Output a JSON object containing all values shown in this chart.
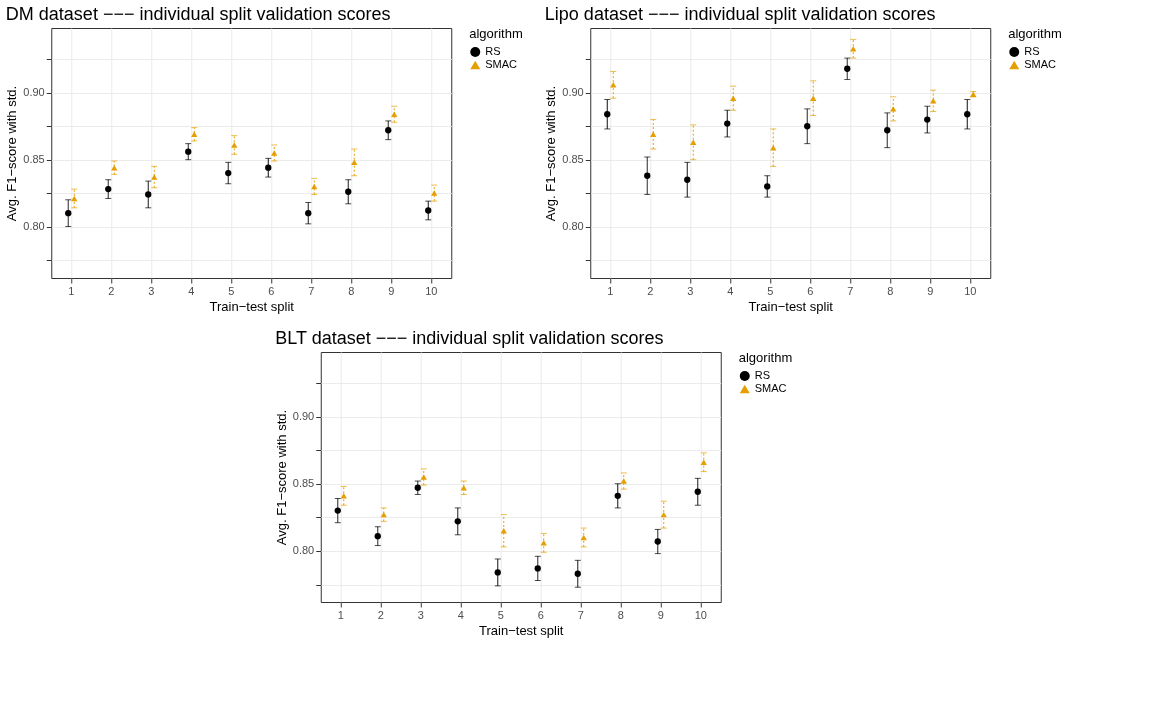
{
  "chart_data": [
    {
      "type": "scatter",
      "title": "DM dataset −−− individual split validation scores",
      "xlabel": "Train−test split",
      "ylabel": "Avg. F1−score with std.",
      "legend_title": "algorithm",
      "categories": [
        "1",
        "2",
        "3",
        "4",
        "5",
        "6",
        "7",
        "8",
        "9",
        "10"
      ],
      "series": [
        {
          "name": "RS",
          "color": "#000000",
          "marker": "circle",
          "line_style": "solid",
          "values": [
            0.81,
            0.828,
            0.824,
            0.856,
            0.84,
            0.844,
            0.81,
            0.826,
            0.872,
            0.812
          ],
          "errors": [
            0.01,
            0.007,
            0.01,
            0.006,
            0.008,
            0.007,
            0.008,
            0.009,
            0.007,
            0.007
          ]
        },
        {
          "name": "SMAC",
          "color": "#e69f00",
          "marker": "triangle",
          "line_style": "dotted",
          "values": [
            0.821,
            0.844,
            0.837,
            0.869,
            0.861,
            0.855,
            0.83,
            0.848,
            0.884,
            0.825
          ],
          "errors": [
            0.007,
            0.005,
            0.008,
            0.005,
            0.007,
            0.006,
            0.006,
            0.01,
            0.006,
            0.006
          ]
        }
      ],
      "ylim": [
        0.7615,
        0.9485
      ],
      "yticks": [
        {
          "value": 0.775,
          "label": null
        },
        {
          "value": 0.8,
          "label": "0.80"
        },
        {
          "value": 0.825,
          "label": null
        },
        {
          "value": 0.85,
          "label": "0.85"
        },
        {
          "value": 0.875,
          "label": null
        },
        {
          "value": 0.9,
          "label": "0.90"
        },
        {
          "value": 0.925,
          "label": null
        }
      ],
      "grid": true,
      "legend": "right"
    },
    {
      "type": "scatter",
      "title": "Lipo dataset −−− individual split validation scores",
      "xlabel": "Train−test split",
      "ylabel": "Avg. F1−score with std.",
      "legend_title": "algorithm",
      "categories": [
        "1",
        "2",
        "3",
        "4",
        "5",
        "6",
        "7",
        "8",
        "9",
        "10"
      ],
      "series": [
        {
          "name": "RS",
          "color": "#000000",
          "marker": "circle",
          "line_style": "solid",
          "values": [
            0.884,
            0.838,
            0.835,
            0.877,
            0.83,
            0.875,
            0.918,
            0.872,
            0.88,
            0.884
          ],
          "errors": [
            0.011,
            0.014,
            0.013,
            0.01,
            0.008,
            0.013,
            0.008,
            0.013,
            0.01,
            0.011
          ]
        },
        {
          "name": "SMAC",
          "color": "#e69f00",
          "marker": "triangle",
          "line_style": "dotted",
          "values": [
            0.906,
            0.869,
            0.863,
            0.896,
            0.859,
            0.896,
            0.933,
            0.888,
            0.894,
            0.899
          ],
          "errors": [
            0.01,
            0.011,
            0.013,
            0.009,
            0.014,
            0.013,
            0.007,
            0.009,
            0.008,
            0.002
          ]
        }
      ],
      "ylim": [
        0.7615,
        0.9485
      ],
      "yticks": [
        {
          "value": 0.775,
          "label": null
        },
        {
          "value": 0.8,
          "label": "0.80"
        },
        {
          "value": 0.825,
          "label": null
        },
        {
          "value": 0.85,
          "label": "0.85"
        },
        {
          "value": 0.875,
          "label": null
        },
        {
          "value": 0.9,
          "label": "0.90"
        },
        {
          "value": 0.925,
          "label": null
        }
      ],
      "grid": true,
      "legend": "right"
    },
    {
      "type": "scatter",
      "title": "BLT dataset −−− individual split validation scores",
      "xlabel": "Train−test split",
      "ylabel": "Avg. F1−score with std.",
      "legend_title": "algorithm",
      "categories": [
        "1",
        "2",
        "3",
        "4",
        "5",
        "6",
        "7",
        "8",
        "9",
        "10"
      ],
      "series": [
        {
          "name": "RS",
          "color": "#000000",
          "marker": "circle",
          "line_style": "solid",
          "values": [
            0.83,
            0.811,
            0.847,
            0.822,
            0.784,
            0.787,
            0.783,
            0.841,
            0.807,
            0.844
          ],
          "errors": [
            0.009,
            0.007,
            0.005,
            0.01,
            0.01,
            0.009,
            0.01,
            0.009,
            0.009,
            0.01
          ]
        },
        {
          "name": "SMAC",
          "color": "#e69f00",
          "marker": "triangle",
          "line_style": "dotted",
          "values": [
            0.841,
            0.827,
            0.855,
            0.847,
            0.815,
            0.806,
            0.81,
            0.852,
            0.827,
            0.866
          ],
          "errors": [
            0.007,
            0.005,
            0.006,
            0.005,
            0.012,
            0.007,
            0.007,
            0.006,
            0.01,
            0.007
          ]
        }
      ],
      "ylim": [
        0.762,
        0.948
      ],
      "yticks": [
        {
          "value": 0.775,
          "label": null
        },
        {
          "value": 0.8,
          "label": "0.80"
        },
        {
          "value": 0.825,
          "label": null
        },
        {
          "value": 0.85,
          "label": "0.85"
        },
        {
          "value": 0.875,
          "label": null
        },
        {
          "value": 0.9,
          "label": "0.90"
        },
        {
          "value": 0.925,
          "label": null
        }
      ],
      "grid": true,
      "legend": "right"
    }
  ]
}
